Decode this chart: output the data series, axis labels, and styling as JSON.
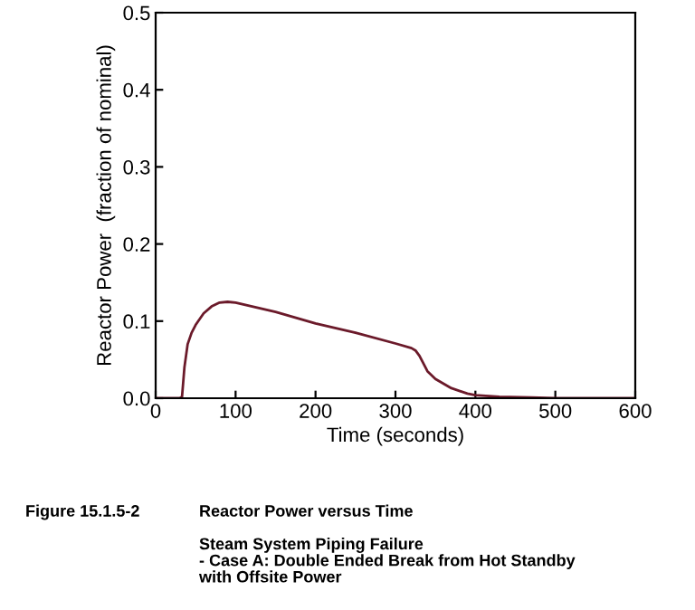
{
  "chart_data": {
    "type": "line",
    "title": "Reactor Power versus Time",
    "subtitle": "Steam System Piping Failure\n- Case A: Double Ended Break from Hot Standby\nwith Offsite Power",
    "annotations": [
      "Figure 15.1.5-2"
    ],
    "xlabel": "Time (seconds)",
    "ylabel": "Reactor Power  (fraction of nominal)",
    "x": [
      0,
      30,
      33,
      36,
      40,
      45,
      50,
      60,
      70,
      80,
      90,
      100,
      150,
      200,
      250,
      300,
      320,
      325,
      330,
      340,
      350,
      370,
      390,
      400,
      430,
      470,
      500,
      600
    ],
    "series": [
      {
        "color": "#6b1a2a",
        "values": [
          0,
          0,
          0.002,
          0.04,
          0.07,
          0.085,
          0.095,
          0.11,
          0.119,
          0.124,
          0.125,
          0.124,
          0.112,
          0.097,
          0.085,
          0.071,
          0.065,
          0.062,
          0.055,
          0.035,
          0.025,
          0.013,
          0.006,
          0.004,
          0.002,
          0.001,
          0,
          0
        ]
      }
    ],
    "xlim": [
      0,
      600
    ],
    "ylim": [
      0,
      0.5
    ],
    "xticks": [
      0,
      100,
      200,
      300,
      400,
      500,
      600
    ],
    "yticks": [
      {
        "value": 0,
        "label": "0.0"
      },
      0.1,
      0.2,
      0.3,
      0.4,
      0.5
    ],
    "grid": false,
    "legend": false
  }
}
